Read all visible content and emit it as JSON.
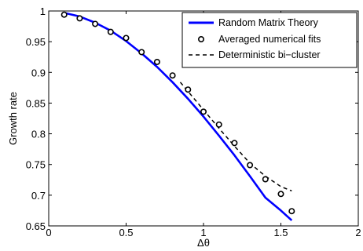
{
  "chart_data": {
    "type": "line",
    "xlabel": "Δθ",
    "ylabel": "Growth rate",
    "xlim": [
      0,
      2
    ],
    "ylim": [
      0.65,
      1
    ],
    "xticks": [
      "0",
      "0.5",
      "1",
      "1.5",
      "2"
    ],
    "xtick_values": [
      0,
      0.5,
      1,
      1.5,
      2
    ],
    "yticks": [
      "0.65",
      "0.7",
      "0.75",
      "0.8",
      "0.85",
      "0.9",
      "0.95",
      "1"
    ],
    "ytick_values": [
      0.65,
      0.7,
      0.75,
      0.8,
      0.85,
      0.9,
      0.95,
      1
    ],
    "grid": false,
    "legend_position": "top-right",
    "series": [
      {
        "name": "Random Matrix Theory",
        "style": "solid-line",
        "color": "#0000ff",
        "x": [
          0.1,
          0.2,
          0.3,
          0.4,
          0.5,
          0.6,
          0.7,
          0.8,
          0.9,
          1.0,
          1.1,
          1.2,
          1.3,
          1.4,
          1.5,
          1.57
        ],
        "y": [
          0.997,
          0.991,
          0.981,
          0.968,
          0.951,
          0.931,
          0.909,
          0.884,
          0.857,
          0.828,
          0.797,
          0.765,
          0.731,
          0.696,
          0.675,
          0.659
        ]
      },
      {
        "name": "Averaged numerical fits",
        "style": "circle-markers",
        "color": "#000000",
        "x": [
          0.1,
          0.2,
          0.3,
          0.4,
          0.5,
          0.6,
          0.7,
          0.8,
          0.9,
          1.0,
          1.1,
          1.2,
          1.3,
          1.4,
          1.5,
          1.57
        ],
        "y": [
          0.994,
          0.988,
          0.979,
          0.966,
          0.956,
          0.933,
          0.917,
          0.895,
          0.872,
          0.836,
          0.815,
          0.785,
          0.749,
          0.726,
          0.702,
          0.674
        ]
      },
      {
        "name": "Deterministic bi−cluster",
        "style": "dashed-line",
        "color": "#000000",
        "x": [
          0.85,
          0.9,
          1.0,
          1.1,
          1.2,
          1.3,
          1.4,
          1.5,
          1.57
        ],
        "y": [
          0.884,
          0.869,
          0.839,
          0.809,
          0.78,
          0.752,
          0.731,
          0.714,
          0.707
        ]
      }
    ]
  }
}
